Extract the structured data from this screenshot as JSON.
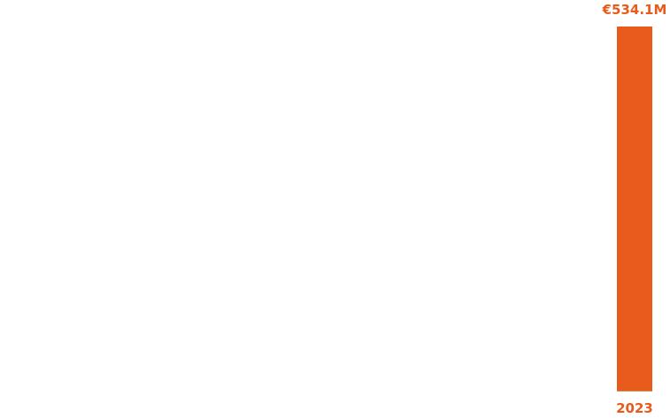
{
  "chart_data": {
    "type": "bar",
    "categories": [
      "2023"
    ],
    "values": [
      534.1
    ],
    "value_labels": [
      "€534.1M"
    ],
    "ylim": [
      0,
      534.1
    ],
    "grid": false,
    "bar_color": "#e85b1c",
    "label_color": "#e85b1c",
    "baseline_color": "#c98a3c"
  }
}
